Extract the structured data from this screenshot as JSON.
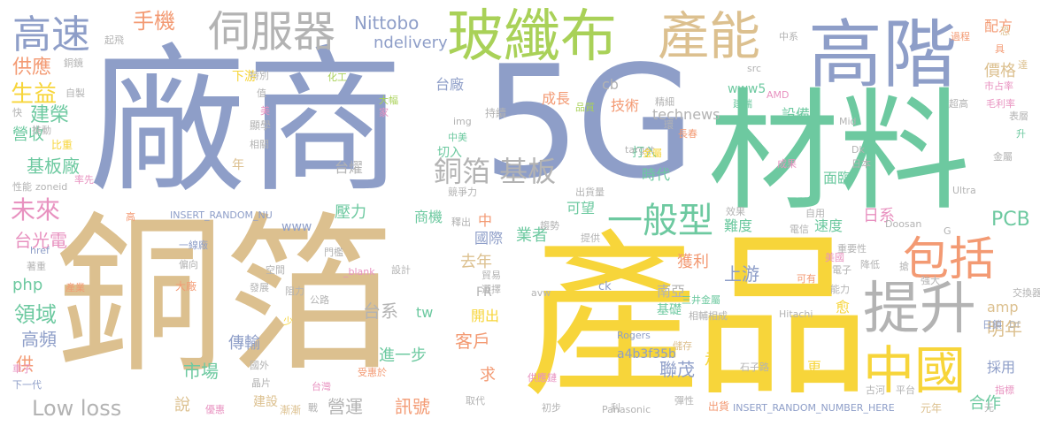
{
  "colors": {
    "blue": "#8e9ec8",
    "green": "#6dc9a0",
    "tan": "#dcc08f",
    "yellow": "#f7d53a",
    "pink": "#e892c0",
    "orange": "#f39a73",
    "gray": "#b3b3b3",
    "lime": "#a9d158",
    "background": "#ffffff"
  },
  "words": [
    "廠商",
    "5G",
    "材料",
    "銅箔",
    "產品",
    "高階",
    "玻纖布",
    "產能",
    "伺服器",
    "高速",
    "手機",
    "提升",
    "中國",
    "包括",
    "一般型",
    "銅箔 基板",
    "Nittobo",
    "ndelivery",
    "供應",
    "生益",
    "建榮",
    "營收",
    "基板廠",
    "未來",
    "台光電",
    "php",
    "領域",
    "高頻",
    "供",
    "Low loss",
    "說",
    "建設",
    "漸漸",
    "營運",
    "訊號",
    "合作",
    "元年",
    "PCB",
    "日系",
    "明年",
    "amp",
    "採用",
    "價格",
    "配方",
    "台廠",
    "成長",
    "cb",
    "技術",
    "technews",
    "上游",
    "南亞",
    "台系",
    "tw",
    "進一步",
    "客戶",
    "開出",
    "市場",
    "傳輸",
    "聯茂",
    "獲利",
    "業者",
    "國際",
    "www",
    "商機",
    "壓力",
    "台燿",
    "時代",
    "打入",
    "www5",
    "切入",
    "設備",
    "面臨",
    "速度",
    "難度",
    "可望",
    "去年",
    "中",
    "求",
    "走",
    "更",
    "愈",
    "基礎",
    "a4b3f35b",
    "Rogers",
    "Panasonic",
    "Hitachi",
    "Doosan",
    "Ultra",
    "Mid",
    "AMD",
    "img",
    "src",
    "ck",
    "avw",
    "Dk",
    "Df",
    "INSERT_RANDOM_NUMBER_HERE",
    "INSERT_RANDOM_NU",
    "_blank",
    "href",
    "zoneid",
    "FR",
    "G",
    "target",
    "下游",
    "特別",
    "顯學",
    "相關",
    "年",
    "化工",
    "大幅",
    "持續",
    "家",
    "品質",
    "中美",
    "精細",
    "環",
    "起飛",
    "銅鏡",
    "自製",
    "快",
    "推動",
    "比重",
    "性能",
    "率先",
    "高",
    "著重",
    "產業",
    "冰",
    "一線廠",
    "偏向",
    "空間",
    "門檻",
    "大廠",
    "發展",
    "阻力",
    "公路",
    "設計",
    "少",
    "國外",
    "晶片",
    "優惠",
    "台灣",
    "戰",
    "受惠於",
    "取代",
    "初步",
    "供應鏈",
    "彈性",
    "出貨",
    "古河",
    "平台",
    "指標",
    "車子",
    "下一代",
    "貿易",
    "選擇",
    "儲存",
    "相輔相成",
    "石子路",
    "日鎖",
    "三井金屬",
    "電子",
    "能力",
    "強大",
    "可有",
    "交換器",
    "搶",
    "降低",
    "重要性",
    "電信",
    "自用",
    "效果",
    "提供",
    "趨勢",
    "釋出",
    "出貨量",
    "競爭力",
    "長春",
    "金屬",
    "成果",
    "日本",
    "中系",
    "過程",
    "具",
    "達",
    "市占率",
    "超高",
    "表層",
    "升",
    "金屬",
    "毛利率",
    "恐",
    "美",
    "值",
    "建瑞",
    "美國",
    "元",
    "利"
  ]
}
